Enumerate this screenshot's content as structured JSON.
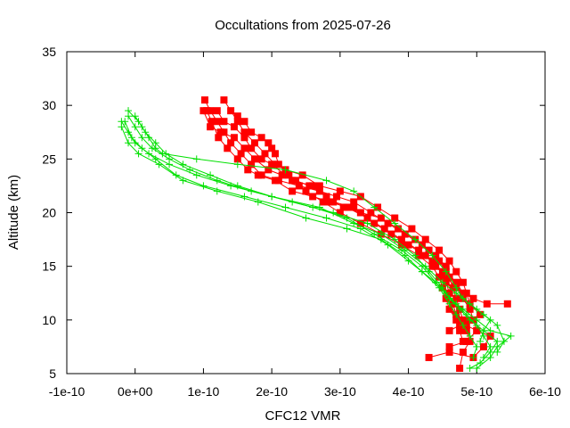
{
  "chart_data": {
    "type": "scatter",
    "title": "Occultations from 2025-07-26",
    "xlabel": "CFC12 VMR",
    "ylabel": "Altitude (km)",
    "xlim": [
      -1e-10,
      6e-10
    ],
    "ylim": [
      5,
      35
    ],
    "x_tick_values": [
      -1e-10,
      0,
      1e-10,
      2e-10,
      3e-10,
      4e-10,
      5e-10,
      6e-10
    ],
    "x_tick_labels": [
      "-1e-10",
      "0e+00",
      "1e-10",
      "2e-10",
      "3e-10",
      "4e-10",
      "5e-10",
      "6e-10"
    ],
    "y_tick_values": [
      5,
      10,
      15,
      20,
      25,
      30,
      35
    ],
    "y_tick_labels": [
      "5",
      "10",
      "15",
      "20",
      "25",
      "30",
      "35"
    ],
    "grid": false,
    "colors": {
      "red": "#ff0000",
      "green": "#00e000"
    },
    "series": [
      {
        "marker": "square",
        "color": "#ff0000",
        "points": [
          [
            1.02e-10,
            30.5
          ],
          [
            1.1e-10,
            29.5
          ],
          [
            1.2e-10,
            28.5
          ],
          [
            1.3e-10,
            27.5
          ],
          [
            1.4e-10,
            26.5
          ],
          [
            1.55e-10,
            25.5
          ],
          [
            1.7e-10,
            24.5
          ],
          [
            1.85e-10,
            23.5
          ],
          [
            2.1e-10,
            23.0
          ],
          [
            2.4e-10,
            22.5
          ],
          [
            2.7e-10,
            22.0
          ],
          [
            2.95e-10,
            21.5
          ],
          [
            3.2e-10,
            21.0
          ],
          [
            3.45e-10,
            20.0
          ],
          [
            3.7e-10,
            19.0
          ],
          [
            3.95e-10,
            18.0
          ],
          [
            4.2e-10,
            17.0
          ],
          [
            4.4e-10,
            16.0
          ],
          [
            4.55e-10,
            15.0
          ],
          [
            4.6e-10,
            14.0
          ],
          [
            4.65e-10,
            13.0
          ],
          [
            4.7e-10,
            12.0
          ],
          [
            4.75e-10,
            11.0
          ],
          [
            4.8e-10,
            10.0
          ],
          [
            4.85e-10,
            9.0
          ],
          [
            4.9e-10,
            8.0
          ],
          [
            4.8e-10,
            7.0
          ],
          [
            4.75e-10,
            5.5
          ]
        ]
      },
      {
        "marker": "square",
        "color": "#ff0000",
        "points": [
          [
            1.05e-10,
            29.5
          ],
          [
            1.12e-10,
            28.5
          ],
          [
            1.22e-10,
            27.0
          ],
          [
            1.35e-10,
            26.0
          ],
          [
            1.5e-10,
            25.0
          ],
          [
            1.65e-10,
            24.0
          ],
          [
            1.8e-10,
            23.5
          ],
          [
            2.05e-10,
            23.0
          ],
          [
            2.3e-10,
            22.0
          ],
          [
            2.6e-10,
            21.5
          ],
          [
            2.85e-10,
            21.0
          ],
          [
            3.1e-10,
            20.5
          ],
          [
            3.4e-10,
            19.5
          ],
          [
            3.65e-10,
            18.5
          ],
          [
            3.9e-10,
            17.5
          ],
          [
            4.15e-10,
            16.5
          ],
          [
            4.35e-10,
            15.5
          ],
          [
            4.5e-10,
            14.5
          ],
          [
            4.55e-10,
            13.5
          ],
          [
            4.6e-10,
            12.5
          ],
          [
            4.65e-10,
            11.5
          ],
          [
            4.7e-10,
            10.5
          ],
          [
            4.85e-10,
            9.5
          ],
          [
            5e-10,
            9.0
          ],
          [
            5.2e-10,
            8.5
          ],
          [
            5.1e-10,
            7.5
          ],
          [
            4.95e-10,
            6.5
          ],
          [
            4.6e-10,
            7.0
          ],
          [
            4.3e-10,
            6.5
          ]
        ]
      },
      {
        "marker": "square",
        "color": "#ff0000",
        "points": [
          [
            1.3e-10,
            30.5
          ],
          [
            1.4e-10,
            29.5
          ],
          [
            1.5e-10,
            28.5
          ],
          [
            1.6e-10,
            27.5
          ],
          [
            1.75e-10,
            26.5
          ],
          [
            1.9e-10,
            25.5
          ],
          [
            2.05e-10,
            24.5
          ],
          [
            2.2e-10,
            24.0
          ],
          [
            2.45e-10,
            23.5
          ],
          [
            2.7e-10,
            22.5
          ],
          [
            3e-10,
            22.0
          ],
          [
            3.3e-10,
            21.5
          ],
          [
            3.55e-10,
            20.5
          ],
          [
            3.8e-10,
            19.5
          ],
          [
            4.05e-10,
            18.5
          ],
          [
            4.25e-10,
            17.5
          ],
          [
            4.45e-10,
            16.5
          ],
          [
            4.6e-10,
            15.5
          ],
          [
            4.7e-10,
            14.5
          ],
          [
            4.8e-10,
            13.5
          ],
          [
            4.85e-10,
            12.5
          ],
          [
            4.9e-10,
            11.5
          ],
          [
            5.05e-10,
            10.5
          ],
          [
            4.9e-10,
            10.0
          ],
          [
            4.75e-10,
            9.5
          ],
          [
            4.6e-10,
            9.0
          ]
        ]
      },
      {
        "marker": "square",
        "color": "#ff0000",
        "points": [
          [
            1e-10,
            29.5
          ],
          [
            1.1e-10,
            28.0
          ],
          [
            1.25e-10,
            27.5
          ],
          [
            1.45e-10,
            27.0
          ],
          [
            1.6e-10,
            26.0
          ],
          [
            1.75e-10,
            25.0
          ],
          [
            1.95e-10,
            24.0
          ],
          [
            2.15e-10,
            23.5
          ],
          [
            2.35e-10,
            23.0
          ],
          [
            2.55e-10,
            22.5
          ],
          [
            2.8e-10,
            21.5
          ],
          [
            3.05e-10,
            20.5
          ],
          [
            3.3e-10,
            20.0
          ],
          [
            3.6e-10,
            19.5
          ],
          [
            3.85e-10,
            18.5
          ],
          [
            4.1e-10,
            17.5
          ],
          [
            4.3e-10,
            16.5
          ],
          [
            4.45e-10,
            15.5
          ],
          [
            4.55e-10,
            14.5
          ],
          [
            4.7e-10,
            13.5
          ],
          [
            4.8e-10,
            12.5
          ],
          [
            4.95e-10,
            12.0
          ],
          [
            5.15e-10,
            11.5
          ],
          [
            5.45e-10,
            11.5
          ]
        ]
      },
      {
        "marker": "square",
        "color": "#ff0000",
        "points": [
          [
            1.2e-10,
            29.5
          ],
          [
            1.3e-10,
            28.5
          ],
          [
            1.45e-10,
            28.0
          ],
          [
            1.6e-10,
            27.0
          ],
          [
            1.7e-10,
            26.0
          ],
          [
            1.85e-10,
            25.0
          ],
          [
            2e-10,
            24.5
          ],
          [
            2.3e-10,
            23.0
          ],
          [
            2.6e-10,
            22.5
          ],
          [
            2.9e-10,
            21.0
          ],
          [
            3.2e-10,
            20.5
          ],
          [
            3.5e-10,
            19.0
          ],
          [
            3.75e-10,
            18.0
          ],
          [
            4e-10,
            17.0
          ],
          [
            4.25e-10,
            16.0
          ],
          [
            4.4e-10,
            15.0
          ],
          [
            4.55e-10,
            14.0
          ],
          [
            4.7e-10,
            13.0
          ],
          [
            4.8e-10,
            12.0
          ],
          [
            4.9e-10,
            11.0
          ],
          [
            4.95e-10,
            10.0
          ],
          [
            5e-10,
            9.0
          ],
          [
            4.85e-10,
            8.0
          ],
          [
            4.6e-10,
            7.5
          ]
        ]
      },
      {
        "marker": "square",
        "color": "#ff0000",
        "points": [
          [
            1.5e-10,
            29.0
          ],
          [
            1.6e-10,
            28.5
          ],
          [
            1.7e-10,
            27.5
          ],
          [
            1.85e-10,
            27.0
          ],
          [
            1.95e-10,
            26.5
          ],
          [
            2e-10,
            26.0
          ],
          [
            2.05e-10,
            25.5
          ],
          [
            2.1e-10,
            24.5
          ],
          [
            2.25e-10,
            23.5
          ],
          [
            2.5e-10,
            22.0
          ],
          [
            2.75e-10,
            21.0
          ],
          [
            3e-10,
            20.0
          ],
          [
            3.3e-10,
            19.0
          ],
          [
            3.6e-10,
            18.0
          ],
          [
            3.9e-10,
            17.0
          ],
          [
            4.15e-10,
            16.0
          ],
          [
            4.35e-10,
            15.0
          ],
          [
            4.45e-10,
            14.0
          ],
          [
            4.5e-10,
            13.0
          ],
          [
            4.55e-10,
            12.0
          ],
          [
            4.6e-10,
            11.0
          ],
          [
            4.7e-10,
            10.0
          ],
          [
            4.75e-10,
            9.0
          ],
          [
            4.8e-10,
            8.0
          ]
        ]
      },
      {
        "marker": "plus",
        "color": "#00e000",
        "points": [
          [
            -2e-11,
            28.5
          ],
          [
            -1e-11,
            27.5
          ],
          [
            0.0,
            26.5
          ],
          [
            2e-11,
            25.5
          ],
          [
            5e-11,
            24.5
          ],
          [
            9e-11,
            23.5
          ],
          [
            1.4e-10,
            22.5
          ],
          [
            2e-10,
            21.5
          ],
          [
            2.6e-10,
            20.5
          ],
          [
            3.1e-10,
            19.5
          ],
          [
            3.5e-10,
            18.0
          ],
          [
            3.9e-10,
            16.5
          ],
          [
            4.2e-10,
            15.0
          ],
          [
            4.4e-10,
            13.5
          ],
          [
            4.6e-10,
            12.0
          ],
          [
            4.8e-10,
            11.0
          ],
          [
            5e-10,
            10.0
          ],
          [
            5.2e-10,
            9.0
          ],
          [
            5.5e-10,
            8.5
          ],
          [
            5.3e-10,
            7.5
          ],
          [
            5.2e-10,
            6.5
          ],
          [
            5e-10,
            5.5
          ]
        ]
      },
      {
        "marker": "plus",
        "color": "#00e000",
        "points": [
          [
            -1e-11,
            29.0
          ],
          [
            0.0,
            28.0
          ],
          [
            1e-11,
            27.0
          ],
          [
            2.5e-11,
            26.0
          ],
          [
            5e-11,
            25.0
          ],
          [
            8e-11,
            24.0
          ],
          [
            1.2e-10,
            23.0
          ],
          [
            1.7e-10,
            22.0
          ],
          [
            2.3e-10,
            21.0
          ],
          [
            2.9e-10,
            20.0
          ],
          [
            3.4e-10,
            19.0
          ],
          [
            3.8e-10,
            17.5
          ],
          [
            4.1e-10,
            16.0
          ],
          [
            4.3e-10,
            14.5
          ],
          [
            4.5e-10,
            13.0
          ],
          [
            4.6e-10,
            12.0
          ],
          [
            4.75e-10,
            11.0
          ],
          [
            4.9e-10,
            10.0
          ],
          [
            5.1e-10,
            9.0
          ],
          [
            5.3e-10,
            8.0
          ],
          [
            5.2e-10,
            7.0
          ],
          [
            5.05e-10,
            6.0
          ],
          [
            4.9e-10,
            5.5
          ]
        ]
      },
      {
        "marker": "plus",
        "color": "#00e000",
        "points": [
          [
            -1.5e-11,
            28.5
          ],
          [
            -5e-12,
            27.0
          ],
          [
            1e-11,
            26.0
          ],
          [
            3e-11,
            25.0
          ],
          [
            6e-11,
            23.5
          ],
          [
            1e-10,
            22.5
          ],
          [
            1.6e-10,
            21.5
          ],
          [
            2.2e-10,
            20.5
          ],
          [
            2.8e-10,
            19.5
          ],
          [
            3.3e-10,
            18.5
          ],
          [
            3.7e-10,
            17.0
          ],
          [
            4e-10,
            15.5
          ],
          [
            4.2e-10,
            14.5
          ],
          [
            4.4e-10,
            13.5
          ],
          [
            4.55e-10,
            12.5
          ],
          [
            4.7e-10,
            11.5
          ],
          [
            4.85e-10,
            10.5
          ],
          [
            5e-10,
            9.5
          ],
          [
            5.1e-10,
            8.5
          ],
          [
            5.2e-10,
            7.5
          ],
          [
            5.1e-10,
            6.5
          ]
        ]
      },
      {
        "marker": "plus",
        "color": "#00e000",
        "points": [
          [
            -2e-11,
            28.0
          ],
          [
            -1e-11,
            26.5
          ],
          [
            5e-12,
            25.5
          ],
          [
            3.5e-11,
            24.5
          ],
          [
            7e-11,
            23.0
          ],
          [
            1.2e-10,
            22.0
          ],
          [
            1.8e-10,
            21.0
          ],
          [
            2.5e-10,
            19.5
          ],
          [
            3.1e-10,
            18.5
          ],
          [
            3.6e-10,
            17.5
          ],
          [
            3.95e-10,
            16.0
          ],
          [
            4.2e-10,
            14.5
          ],
          [
            4.45e-10,
            13.0
          ],
          [
            4.6e-10,
            11.5
          ],
          [
            4.7e-10,
            10.5
          ],
          [
            4.8e-10,
            9.5
          ],
          [
            4.9e-10,
            8.5
          ],
          [
            5e-10,
            7.5
          ],
          [
            4.95e-10,
            6.5
          ]
        ]
      },
      {
        "marker": "plus",
        "color": "#00e000",
        "points": [
          [
            -1e-11,
            29.5
          ],
          [
            5e-12,
            28.5
          ],
          [
            1.5e-11,
            27.5
          ],
          [
            3e-11,
            26.5
          ],
          [
            4.5e-11,
            25.5
          ],
          [
            7e-11,
            24.5
          ],
          [
            1.1e-10,
            23.5
          ],
          [
            1.5e-10,
            22.5
          ],
          [
            2e-10,
            21.5
          ],
          [
            2.7e-10,
            20.5
          ],
          [
            3.2e-10,
            19.0
          ],
          [
            3.6e-10,
            18.0
          ],
          [
            3.95e-10,
            16.5
          ],
          [
            4.25e-10,
            15.0
          ],
          [
            4.5e-10,
            13.5
          ],
          [
            4.7e-10,
            12.5
          ],
          [
            4.9e-10,
            11.5
          ],
          [
            5.1e-10,
            10.5
          ],
          [
            5.3e-10,
            9.5
          ],
          [
            5.4e-10,
            8.0
          ],
          [
            5.3e-10,
            7.0
          ]
        ]
      },
      {
        "marker": "plus",
        "color": "#00e000",
        "points": [
          [
            0.0,
            29.0
          ],
          [
            1e-11,
            28.0
          ],
          [
            2e-11,
            27.0
          ],
          [
            3e-11,
            26.0
          ],
          [
            4e-11,
            25.5
          ],
          [
            9e-11,
            25.0
          ],
          [
            1.5e-10,
            24.5
          ],
          [
            2.2e-10,
            24.0
          ],
          [
            2.8e-10,
            23.0
          ],
          [
            3.2e-10,
            22.0
          ],
          [
            3.5e-10,
            20.5
          ],
          [
            3.8e-10,
            19.0
          ],
          [
            4.1e-10,
            17.5
          ],
          [
            4.35e-10,
            16.0
          ],
          [
            4.55e-10,
            14.5
          ],
          [
            4.7e-10,
            13.0
          ],
          [
            4.8e-10,
            12.0
          ],
          [
            5e-10,
            11.0
          ],
          [
            5.2e-10,
            10.0
          ],
          [
            5.1e-10,
            9.0
          ],
          [
            5.05e-10,
            8.0
          ]
        ]
      }
    ]
  }
}
